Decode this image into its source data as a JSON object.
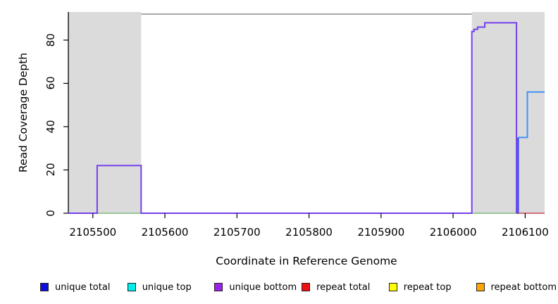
{
  "figure": {
    "xlabel": "Coordinate in Reference Genome",
    "ylabel": "Read Coverage Depth"
  },
  "chart_data": {
    "type": "line",
    "subtype": "step-coverage",
    "title": "",
    "xlabel": "Coordinate in Reference Genome",
    "ylabel": "Read Coverage Depth",
    "xlim": [
      2105466,
      2106127
    ],
    "ylim": [
      0,
      93
    ],
    "x_ticks": [
      2105500,
      2105600,
      2105700,
      2105800,
      2105900,
      2106000,
      2106100
    ],
    "y_ticks": [
      0,
      20,
      40,
      60,
      80
    ],
    "grid": false,
    "plot_bg": "#ffffff",
    "band_color": "#dbdbdb",
    "masked_bands_x": [
      [
        2105466,
        2105567
      ],
      [
        2106026,
        2106127
      ]
    ],
    "series": [
      {
        "name": "clip ceiling line",
        "color": "#949494",
        "width": 1.6,
        "points": [
          [
            2105567,
            92
          ],
          [
            2106026,
            92
          ]
        ]
      },
      {
        "name": "baseline green left",
        "color": "#8fce8f",
        "width": 1.5,
        "points": [
          [
            2105506,
            0
          ],
          [
            2105567,
            0
          ]
        ]
      },
      {
        "name": "baseline green right",
        "color": "#8fce8f",
        "width": 1.5,
        "points": [
          [
            2106026,
            0
          ],
          [
            2106088,
            0
          ]
        ]
      },
      {
        "name": "repeat baseline",
        "color": "#e0566e",
        "width": 1.5,
        "points": [
          [
            2106091,
            0
          ],
          [
            2106127,
            0
          ]
        ]
      },
      {
        "name": "unique bottom",
        "color": "#7440ee",
        "width": 2,
        "points": [
          [
            2105466,
            0
          ],
          [
            2105506,
            0
          ],
          [
            2105506,
            22
          ],
          [
            2105567,
            22
          ],
          [
            2105567,
            0
          ],
          [
            2106026,
            0
          ],
          [
            2106026,
            84
          ],
          [
            2106029,
            84
          ],
          [
            2106029,
            85
          ],
          [
            2106034,
            85
          ],
          [
            2106034,
            86
          ],
          [
            2106044,
            86
          ],
          [
            2106044,
            88
          ],
          [
            2106088,
            88
          ],
          [
            2106088,
            0
          ]
        ]
      },
      {
        "name": "unique total riser",
        "color": "#4c55f0",
        "width": 3,
        "points": [
          [
            2106090,
            0
          ],
          [
            2106090,
            35
          ]
        ]
      },
      {
        "name": "unique total",
        "color": "#3f93f8",
        "width": 2,
        "points": [
          [
            2106090,
            35
          ],
          [
            2106103,
            35
          ],
          [
            2106103,
            56
          ],
          [
            2106127,
            56
          ]
        ]
      }
    ],
    "legend": {
      "position": "bottom",
      "items": [
        {
          "label": "unique total",
          "color": "#0d0dde"
        },
        {
          "label": "unique top",
          "color": "#00eeee"
        },
        {
          "label": "unique bottom",
          "color": "#a020f0"
        },
        {
          "label": "repeat total",
          "color": "#ee1111"
        },
        {
          "label": "repeat top",
          "color": "#ffff00"
        },
        {
          "label": "repeat bottom",
          "color": "#ffa500"
        }
      ]
    }
  }
}
